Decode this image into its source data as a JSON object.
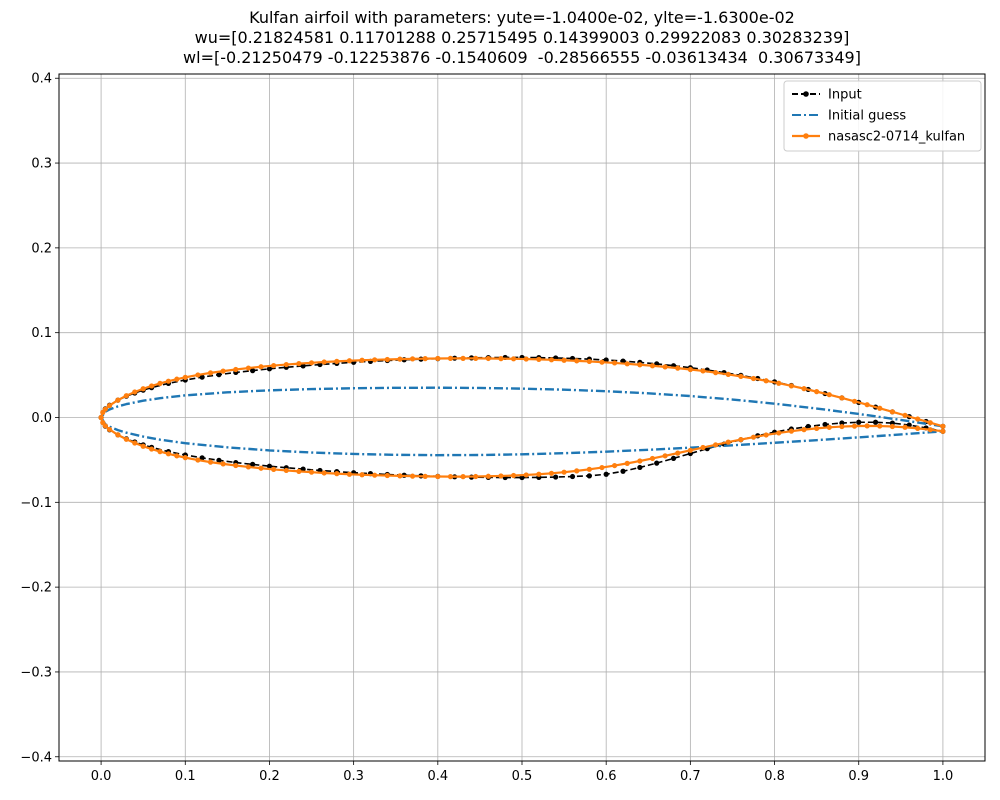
{
  "chart_data": {
    "type": "line",
    "title_lines": [
      "Kulfan airfoil with parameters: yute=-1.0400e-02, ylte=-1.6300e-02",
      "wu=[0.21824581 0.11701288 0.25715495 0.14399003 0.29922083 0.30283239]",
      "wl=[-0.21250479 -0.12253876 -0.1540609  -0.28566555 -0.03613434  0.30673349]"
    ],
    "xlabel": "",
    "ylabel": "",
    "xlim": [
      -0.05,
      1.05
    ],
    "ylim": [
      -0.405,
      0.405
    ],
    "xticks": [
      0.0,
      0.1,
      0.2,
      0.3,
      0.4,
      0.5,
      0.6,
      0.7,
      0.8,
      0.9,
      1.0
    ],
    "xtick_labels": [
      "0.0",
      "0.1",
      "0.2",
      "0.3",
      "0.4",
      "0.5",
      "0.6",
      "0.7",
      "0.8",
      "0.9",
      "1.0"
    ],
    "yticks": [
      -0.4,
      -0.3,
      -0.2,
      -0.1,
      0.0,
      0.1,
      0.2,
      0.3,
      0.4
    ],
    "ytick_labels": [
      "−0.4",
      "−0.3",
      "−0.2",
      "−0.1",
      "0.0",
      "0.1",
      "0.2",
      "0.3",
      "0.4"
    ],
    "grid": true,
    "legend_position": "top-right",
    "series": [
      {
        "name": "Input",
        "color": "#000000",
        "line_style": "dashed",
        "marker": "circle",
        "x": [
          1.0,
          0.98,
          0.96,
          0.94,
          0.92,
          0.9,
          0.88,
          0.86,
          0.84,
          0.82,
          0.8,
          0.78,
          0.76,
          0.74,
          0.72,
          0.7,
          0.68,
          0.66,
          0.64,
          0.62,
          0.6,
          0.58,
          0.56,
          0.54,
          0.52,
          0.5,
          0.48,
          0.46,
          0.44,
          0.42,
          0.4,
          0.38,
          0.36,
          0.34,
          0.32,
          0.3,
          0.28,
          0.26,
          0.24,
          0.22,
          0.2,
          0.18,
          0.16,
          0.14,
          0.12,
          0.1,
          0.08,
          0.06,
          0.05,
          0.04,
          0.03,
          0.02,
          0.01,
          0.005,
          0.0,
          0.005,
          0.01,
          0.02,
          0.03,
          0.04,
          0.05,
          0.06,
          0.08,
          0.1,
          0.12,
          0.14,
          0.16,
          0.18,
          0.2,
          0.22,
          0.24,
          0.26,
          0.28,
          0.3,
          0.32,
          0.34,
          0.36,
          0.38,
          0.4,
          0.42,
          0.44,
          0.46,
          0.48,
          0.5,
          0.52,
          0.54,
          0.56,
          0.58,
          0.6,
          0.62,
          0.64,
          0.66,
          0.68,
          0.7,
          0.72,
          0.74,
          0.76,
          0.78,
          0.8,
          0.82,
          0.84,
          0.86,
          0.88,
          0.9,
          0.92,
          0.94,
          0.96,
          0.98,
          1.0
        ],
        "y": [
          -0.0104,
          -0.0047,
          0.001,
          0.0067,
          0.0123,
          0.0178,
          0.0231,
          0.0282,
          0.0331,
          0.0377,
          0.042,
          0.046,
          0.0497,
          0.053,
          0.056,
          0.0587,
          0.0611,
          0.0632,
          0.065,
          0.0665,
          0.0678,
          0.0688,
          0.0696,
          0.0702,
          0.0706,
          0.0708,
          0.0708,
          0.0706,
          0.0703,
          0.0699,
          0.0694,
          0.0688,
          0.0681,
          0.0672,
          0.0662,
          0.0651,
          0.0638,
          0.0624,
          0.0609,
          0.0592,
          0.0574,
          0.0553,
          0.0531,
          0.0505,
          0.0476,
          0.0442,
          0.0402,
          0.0352,
          0.0323,
          0.0289,
          0.0251,
          0.0205,
          0.0145,
          0.0102,
          0.0,
          -0.0102,
          -0.0145,
          -0.0205,
          -0.0251,
          -0.0289,
          -0.0323,
          -0.0352,
          -0.0402,
          -0.0442,
          -0.0476,
          -0.0505,
          -0.0531,
          -0.0553,
          -0.0574,
          -0.0592,
          -0.0609,
          -0.0624,
          -0.0638,
          -0.0651,
          -0.0662,
          -0.0672,
          -0.0681,
          -0.0688,
          -0.0694,
          -0.0699,
          -0.0703,
          -0.0706,
          -0.0708,
          -0.0708,
          -0.0706,
          -0.0702,
          -0.0696,
          -0.0688,
          -0.0669,
          -0.0634,
          -0.0589,
          -0.0538,
          -0.0482,
          -0.0425,
          -0.0368,
          -0.0313,
          -0.0262,
          -0.0215,
          -0.0173,
          -0.0136,
          -0.0106,
          -0.0082,
          -0.0065,
          -0.0056,
          -0.0056,
          -0.0066,
          -0.0089,
          -0.0123,
          -0.0163
        ]
      },
      {
        "name": "Initial guess",
        "color": "#1f77b4",
        "line_style": "dashdot",
        "marker": "none",
        "x": [
          1.0,
          0.95,
          0.9,
          0.85,
          0.8,
          0.75,
          0.7,
          0.65,
          0.6,
          0.55,
          0.5,
          0.45,
          0.4,
          0.35,
          0.3,
          0.25,
          0.2,
          0.15,
          0.1,
          0.07,
          0.05,
          0.03,
          0.02,
          0.01,
          0.005,
          0.0,
          0.005,
          0.01,
          0.02,
          0.03,
          0.05,
          0.07,
          0.1,
          0.15,
          0.2,
          0.25,
          0.3,
          0.35,
          0.4,
          0.45,
          0.5,
          0.55,
          0.6,
          0.65,
          0.7,
          0.75,
          0.8,
          0.85,
          0.9,
          0.95,
          1.0
        ],
        "y": [
          -0.0104,
          -0.0029,
          0.0042,
          0.0106,
          0.0163,
          0.0212,
          0.0253,
          0.0285,
          0.031,
          0.0328,
          0.034,
          0.0348,
          0.0351,
          0.035,
          0.0345,
          0.0335,
          0.032,
          0.0297,
          0.0261,
          0.0228,
          0.0198,
          0.0158,
          0.0131,
          0.0095,
          0.0068,
          0.0,
          -0.0078,
          -0.0108,
          -0.0149,
          -0.0179,
          -0.0225,
          -0.0261,
          -0.0303,
          -0.0352,
          -0.0388,
          -0.0413,
          -0.043,
          -0.044,
          -0.0444,
          -0.0442,
          -0.0434,
          -0.0421,
          -0.0403,
          -0.0381,
          -0.0356,
          -0.0328,
          -0.0298,
          -0.0267,
          -0.0234,
          -0.02,
          -0.0163
        ]
      },
      {
        "name": "nasasc2-0714_kulfan",
        "color": "#ff7f0e",
        "line_style": "solid",
        "marker": "circle",
        "x": [
          1.0,
          0.985,
          0.97,
          0.955,
          0.94,
          0.925,
          0.91,
          0.895,
          0.88,
          0.865,
          0.85,
          0.835,
          0.82,
          0.805,
          0.79,
          0.775,
          0.76,
          0.745,
          0.73,
          0.715,
          0.7,
          0.685,
          0.67,
          0.655,
          0.64,
          0.625,
          0.61,
          0.595,
          0.58,
          0.565,
          0.55,
          0.535,
          0.52,
          0.505,
          0.49,
          0.475,
          0.46,
          0.445,
          0.43,
          0.415,
          0.4,
          0.385,
          0.37,
          0.355,
          0.34,
          0.325,
          0.31,
          0.295,
          0.28,
          0.265,
          0.25,
          0.235,
          0.22,
          0.205,
          0.19,
          0.175,
          0.16,
          0.145,
          0.13,
          0.115,
          0.1,
          0.09,
          0.08,
          0.07,
          0.06,
          0.05,
          0.04,
          0.03,
          0.02,
          0.01,
          0.005,
          0.002,
          0.0,
          0.002,
          0.005,
          0.01,
          0.02,
          0.03,
          0.04,
          0.05,
          0.06,
          0.07,
          0.08,
          0.09,
          0.1,
          0.115,
          0.13,
          0.145,
          0.16,
          0.175,
          0.19,
          0.205,
          0.22,
          0.235,
          0.25,
          0.265,
          0.28,
          0.295,
          0.31,
          0.325,
          0.34,
          0.355,
          0.37,
          0.385,
          0.4,
          0.415,
          0.43,
          0.445,
          0.46,
          0.475,
          0.49,
          0.505,
          0.52,
          0.535,
          0.55,
          0.565,
          0.58,
          0.595,
          0.61,
          0.625,
          0.64,
          0.655,
          0.67,
          0.685,
          0.7,
          0.715,
          0.73,
          0.745,
          0.76,
          0.775,
          0.79,
          0.805,
          0.82,
          0.835,
          0.85,
          0.865,
          0.88,
          0.895,
          0.91,
          0.925,
          0.94,
          0.955,
          0.97,
          0.985,
          1.0
        ],
        "y": [
          -0.0104,
          -0.0061,
          -0.0018,
          0.0025,
          0.0067,
          0.0109,
          0.0151,
          0.0191,
          0.0231,
          0.0269,
          0.0305,
          0.034,
          0.0373,
          0.0404,
          0.0433,
          0.046,
          0.0485,
          0.0508,
          0.0529,
          0.0549,
          0.0566,
          0.0582,
          0.0597,
          0.061,
          0.0622,
          0.0633,
          0.0643,
          0.0652,
          0.0661,
          0.0668,
          0.0675,
          0.068,
          0.0685,
          0.0689,
          0.0692,
          0.0694,
          0.0696,
          0.0697,
          0.0697,
          0.0697,
          0.0696,
          0.0694,
          0.0691,
          0.0688,
          0.0684,
          0.068,
          0.0675,
          0.0669,
          0.0662,
          0.0654,
          0.0645,
          0.0635,
          0.0624,
          0.0612,
          0.0598,
          0.0583,
          0.0566,
          0.0547,
          0.0526,
          0.0502,
          0.0473,
          0.0452,
          0.0428,
          0.0402,
          0.0372,
          0.0339,
          0.0301,
          0.0257,
          0.0205,
          0.0141,
          0.0098,
          0.006,
          0.0,
          -0.006,
          -0.0098,
          -0.0141,
          -0.0205,
          -0.0257,
          -0.0301,
          -0.0339,
          -0.0372,
          -0.0402,
          -0.0428,
          -0.0452,
          -0.0473,
          -0.0502,
          -0.0526,
          -0.0547,
          -0.0566,
          -0.0583,
          -0.0598,
          -0.0612,
          -0.0624,
          -0.0635,
          -0.0645,
          -0.0654,
          -0.0662,
          -0.0669,
          -0.0675,
          -0.068,
          -0.0684,
          -0.0688,
          -0.0691,
          -0.0694,
          -0.0696,
          -0.0697,
          -0.0697,
          -0.0696,
          -0.0693,
          -0.0689,
          -0.0684,
          -0.0677,
          -0.0669,
          -0.0658,
          -0.0645,
          -0.0629,
          -0.0611,
          -0.059,
          -0.0567,
          -0.0541,
          -0.0513,
          -0.0483,
          -0.0452,
          -0.042,
          -0.0387,
          -0.0354,
          -0.0322,
          -0.029,
          -0.026,
          -0.0232,
          -0.0206,
          -0.0182,
          -0.0161,
          -0.0143,
          -0.0128,
          -0.0116,
          -0.0107,
          -0.0102,
          -0.0099,
          -0.0101,
          -0.0106,
          -0.0115,
          -0.0128,
          -0.0144,
          -0.0163
        ]
      }
    ]
  }
}
